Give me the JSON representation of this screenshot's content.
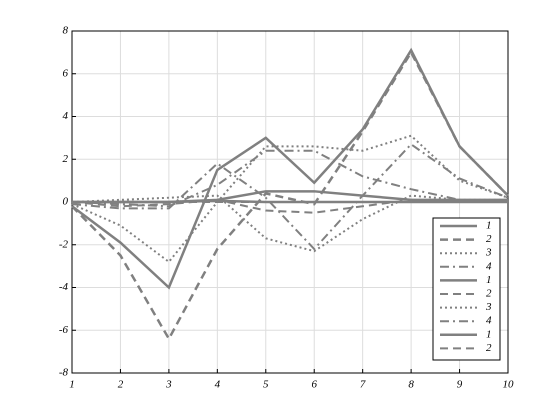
{
  "chart_data": {
    "type": "line",
    "x": [
      1,
      2,
      3,
      4,
      5,
      6,
      7,
      8,
      9,
      10
    ],
    "xlim": [
      1,
      10
    ],
    "xticks": [
      1,
      2,
      3,
      4,
      5,
      6,
      7,
      8,
      9,
      10
    ],
    "ylim": [
      -8,
      8
    ],
    "yticks": [
      -8,
      -6,
      -4,
      -2,
      0,
      2,
      4,
      6,
      8
    ],
    "grid": true,
    "legend": "lower right",
    "series": [
      {
        "name": "1",
        "color": "#808080",
        "dash": "solid",
        "width": 2.5,
        "values": [
          -0.2,
          -1.9,
          -4.0,
          1.5,
          3.0,
          0.9,
          3.4,
          7.1,
          2.6,
          0.3
        ]
      },
      {
        "name": "2",
        "color": "#808080",
        "dash": "dashed",
        "width": 2.5,
        "values": [
          -0.2,
          -2.5,
          -6.4,
          -2.2,
          0.4,
          -0.1,
          3.3,
          7.0,
          2.6,
          0.3
        ]
      },
      {
        "name": "3",
        "color": "#808080",
        "dash": "dotted",
        "width": 2,
        "values": [
          -0.1,
          -1.1,
          -2.8,
          0.0,
          2.6,
          2.6,
          2.4,
          3.1,
          1.0,
          0.2
        ]
      },
      {
        "name": "4",
        "color": "#808080",
        "dash": "dashdot",
        "width": 2,
        "values": [
          -0.1,
          -0.3,
          -0.3,
          1.8,
          0.2,
          -2.2,
          0.3,
          2.7,
          1.1,
          0.2
        ]
      },
      {
        "name": "1",
        "color": "#808080",
        "dash": "solid",
        "width": 2.5,
        "values": [
          0.0,
          0.0,
          0.0,
          0.1,
          0.5,
          0.5,
          0.3,
          0.1,
          0.1,
          0.1
        ]
      },
      {
        "name": "2",
        "color": "#808080",
        "dash": "dashed",
        "width": 2,
        "values": [
          0.0,
          -0.2,
          -0.1,
          0.1,
          -0.4,
          -0.5,
          -0.2,
          0.1,
          0.0,
          0.0
        ]
      },
      {
        "name": "3",
        "color": "#808080",
        "dash": "dotted",
        "width": 2,
        "values": [
          0.0,
          0.1,
          0.2,
          0.3,
          -1.7,
          -2.3,
          -0.8,
          0.3,
          0.1,
          0.1
        ]
      },
      {
        "name": "4",
        "color": "#808080",
        "dash": "dashdot",
        "width": 2,
        "values": [
          0.0,
          -0.1,
          -0.2,
          0.8,
          2.4,
          2.4,
          1.2,
          0.6,
          0.1,
          0.0
        ]
      },
      {
        "name": "1",
        "color": "#808080",
        "dash": "solid",
        "width": 2.5,
        "values": [
          0.0,
          0.0,
          0.0,
          0.05,
          0.0,
          0.0,
          0.0,
          0.0,
          0.0,
          0.0
        ]
      },
      {
        "name": "2",
        "color": "#808080",
        "dash": "dashed",
        "width": 2,
        "values": [
          0.0,
          0.0,
          0.0,
          0.0,
          0.0,
          0.0,
          0.0,
          0.0,
          0.0,
          0.0
        ]
      }
    ]
  }
}
